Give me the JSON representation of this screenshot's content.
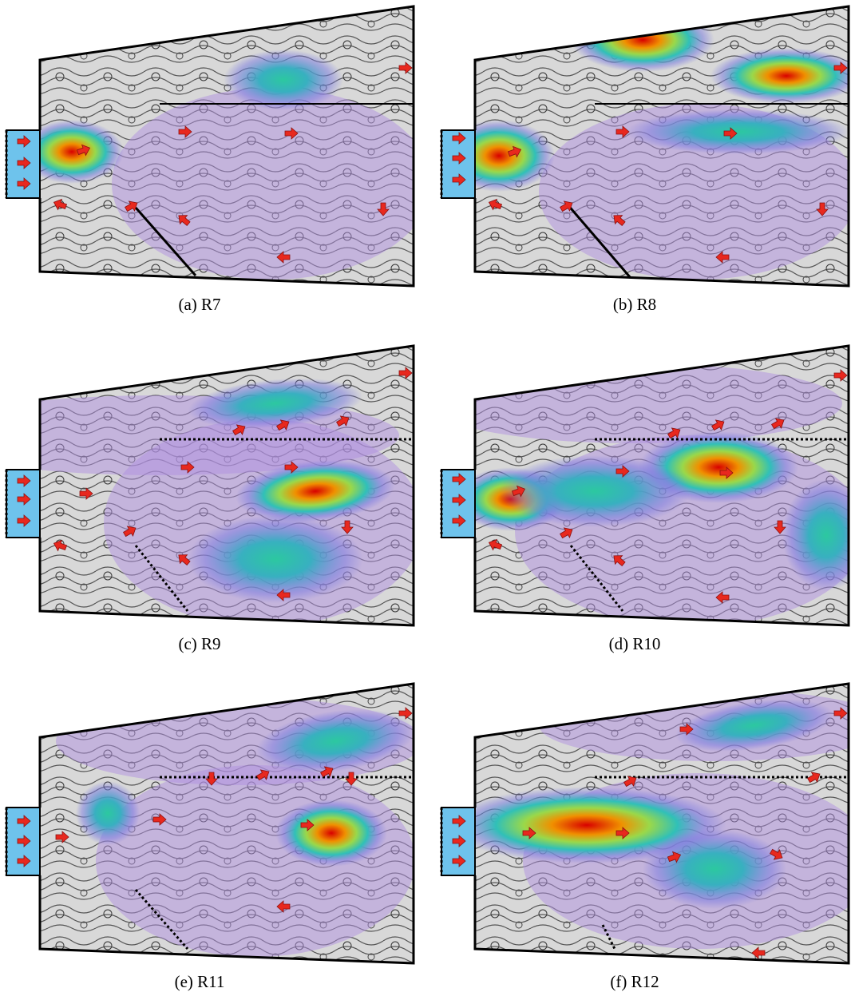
{
  "panels": [
    {
      "caption": "(a) R7"
    },
    {
      "caption": "(b) R8"
    },
    {
      "caption": "(c) R9"
    },
    {
      "caption": "(d) R10"
    },
    {
      "caption": "(e) R11"
    },
    {
      "caption": "(f) R12"
    }
  ]
}
